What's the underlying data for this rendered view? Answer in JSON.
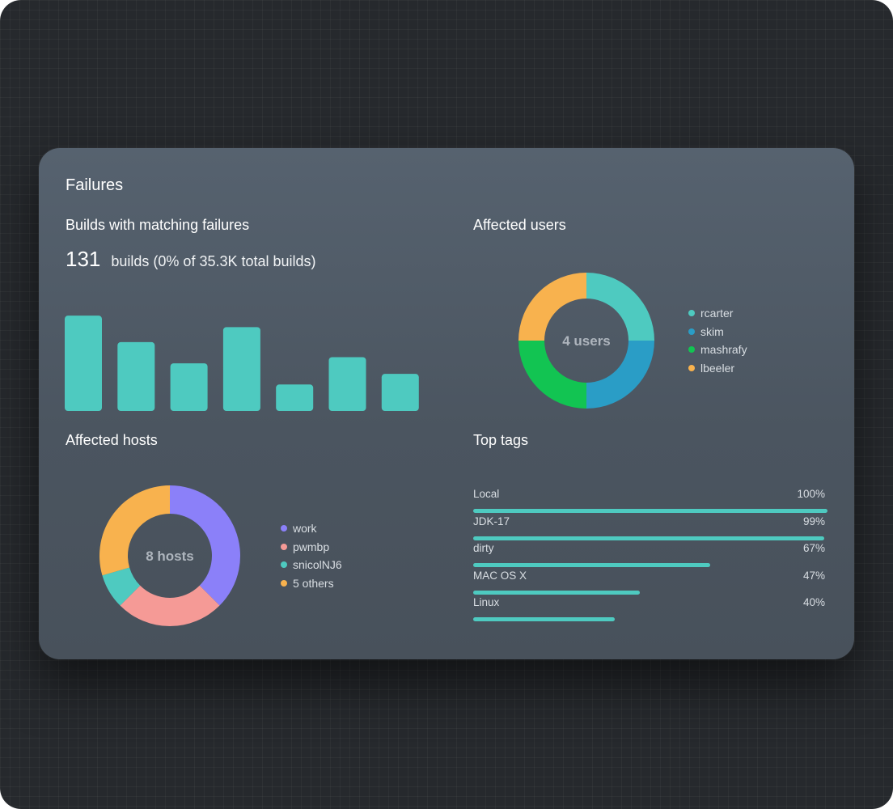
{
  "card": {
    "title": "Failures"
  },
  "builds": {
    "heading": "Builds with matching failures",
    "count": "131",
    "summary": "builds (0% of 35.3K total builds)",
    "bar_color": "#4ecac0"
  },
  "chart_data": [
    {
      "type": "bar",
      "values": [
        108,
        78,
        54,
        95,
        30,
        61,
        42
      ],
      "ylim": [
        0,
        110
      ]
    },
    {
      "type": "pie",
      "title": "Affected users",
      "center_label": "4 users",
      "labels": [
        "rcarter",
        "skim",
        "mashrafy",
        "lbeeler"
      ],
      "values": [
        25,
        25,
        25,
        25
      ],
      "colors": [
        "#4ecac0",
        "#2a9dc6",
        "#12c452",
        "#f8b24e"
      ]
    },
    {
      "type": "pie",
      "title": "Affected hosts",
      "center_label": "8 hosts",
      "labels": [
        "work",
        "pwmbp",
        "snicolNJ6",
        "5 others"
      ],
      "values": [
        37.5,
        25,
        8,
        29.5
      ],
      "colors": [
        "#8b80f9",
        "#f59a96",
        "#4ecac0",
        "#f8b24e"
      ]
    },
    {
      "type": "bar",
      "title": "Top tags",
      "orientation": "horizontal",
      "categories": [
        "Local",
        "JDK-17",
        "dirty",
        "MAC OS X",
        "Linux"
      ],
      "values": [
        100,
        99,
        67,
        47,
        40
      ],
      "value_labels": [
        "100%",
        "99%",
        "67%",
        "47%",
        "40%"
      ],
      "xlim": [
        0,
        100
      ],
      "color": "#4ecac0"
    }
  ]
}
